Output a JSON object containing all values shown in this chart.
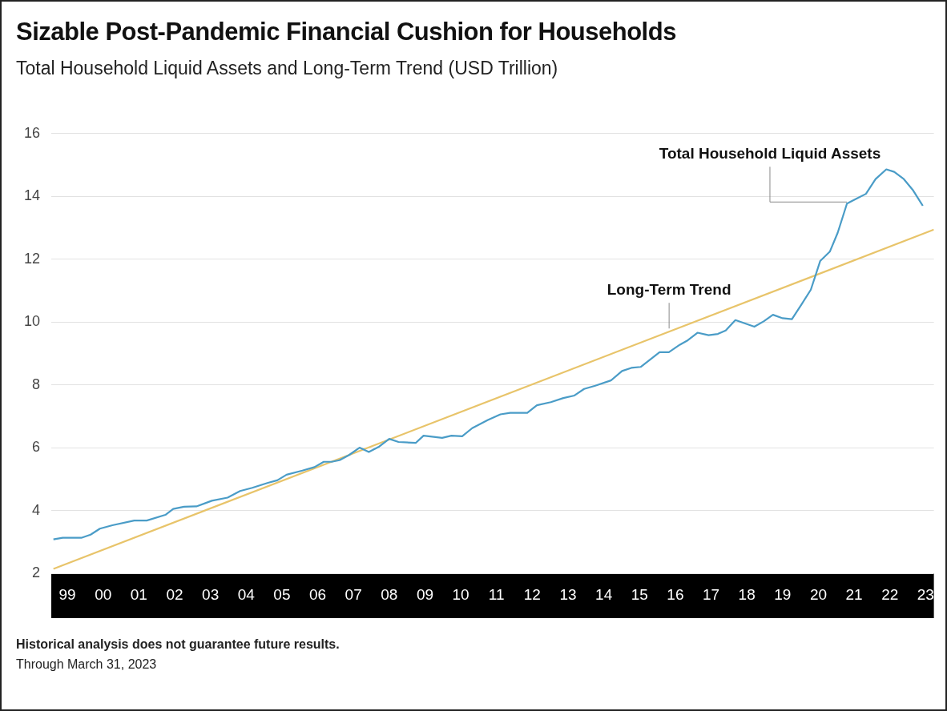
{
  "chart_data": {
    "type": "line",
    "title": "Sizable Post-Pandemic Financial Cushion for Households",
    "subtitle": "Total Household Liquid Assets and Long-Term Trend (USD Trillion)",
    "annotations": [
      "Historical analysis does not guarantee future results.",
      "Through March 31, 2023"
    ],
    "xlim": [
      1998.55,
      2023.23
    ],
    "xticks": [
      {
        "value": 1999,
        "label": "99"
      },
      {
        "value": 2000,
        "label": "00"
      },
      {
        "value": 2001,
        "label": "01"
      },
      {
        "value": 2002,
        "label": "02"
      },
      {
        "value": 2003,
        "label": "03"
      },
      {
        "value": 2004,
        "label": "04"
      },
      {
        "value": 2005,
        "label": "05"
      },
      {
        "value": 2006,
        "label": "06"
      },
      {
        "value": 2007,
        "label": "07"
      },
      {
        "value": 2008,
        "label": "08"
      },
      {
        "value": 2009,
        "label": "09"
      },
      {
        "value": 2010,
        "label": "10"
      },
      {
        "value": 2011,
        "label": "11"
      },
      {
        "value": 2012,
        "label": "12"
      },
      {
        "value": 2013,
        "label": "13"
      },
      {
        "value": 2014,
        "label": "14"
      },
      {
        "value": 2015,
        "label": "15"
      },
      {
        "value": 2016,
        "label": "16"
      },
      {
        "value": 2017,
        "label": "17"
      },
      {
        "value": 2018,
        "label": "18"
      },
      {
        "value": 2019,
        "label": "19"
      },
      {
        "value": 2020,
        "label": "20"
      },
      {
        "value": 2021,
        "label": "21"
      },
      {
        "value": 2022,
        "label": "22"
      },
      {
        "value": 2023,
        "label": "23"
      }
    ],
    "ylim": [
      2,
      16
    ],
    "yticks": [
      2,
      4,
      6,
      8,
      10,
      12,
      14,
      16
    ],
    "grid": "y",
    "legend": false,
    "marker": "none",
    "series": [
      {
        "name": "Total Household Liquid Assets",
        "color": "#4a9cc7",
        "x": [
          1998.61,
          1998.87,
          1999.39,
          1999.65,
          1999.91,
          2000.26,
          2000.87,
          2001.22,
          2001.74,
          2001.96,
          2002.26,
          2002.61,
          2003.04,
          2003.48,
          2003.83,
          2004.17,
          2004.61,
          2004.87,
          2005.13,
          2005.57,
          2005.91,
          2006.17,
          2006.39,
          2006.61,
          2006.87,
          2007.17,
          2007.43,
          2007.7,
          2008.0,
          2008.26,
          2008.74,
          2008.96,
          2009.48,
          2009.74,
          2010.04,
          2010.32,
          2010.76,
          2011.11,
          2011.38,
          2011.86,
          2012.13,
          2012.52,
          2012.87,
          2013.18,
          2013.45,
          2013.76,
          2014.2,
          2014.51,
          2014.77,
          2015.03,
          2015.56,
          2015.82,
          2016.13,
          2016.35,
          2016.62,
          2016.93,
          2017.19,
          2017.41,
          2017.68,
          2018.21,
          2018.47,
          2018.73,
          2019.0,
          2019.26,
          2019.53,
          2019.79,
          2020.05,
          2020.32,
          2020.54,
          2020.8,
          2021.07,
          2021.33,
          2021.6,
          2021.9,
          2022.12,
          2022.39,
          2022.65,
          2022.92
        ],
        "values": [
          3.08,
          3.13,
          3.13,
          3.23,
          3.42,
          3.53,
          3.68,
          3.68,
          3.86,
          4.05,
          4.12,
          4.13,
          4.31,
          4.41,
          4.62,
          4.72,
          4.88,
          4.96,
          5.14,
          5.27,
          5.38,
          5.55,
          5.55,
          5.6,
          5.76,
          6.0,
          5.86,
          6.02,
          6.28,
          6.18,
          6.15,
          6.38,
          6.31,
          6.38,
          6.36,
          6.62,
          6.88,
          7.06,
          7.11,
          7.11,
          7.35,
          7.45,
          7.58,
          7.66,
          7.87,
          7.97,
          8.14,
          8.44,
          8.54,
          8.57,
          9.04,
          9.04,
          9.28,
          9.42,
          9.66,
          9.58,
          9.62,
          9.73,
          10.06,
          9.85,
          10.02,
          10.23,
          10.12,
          10.09,
          10.56,
          11.03,
          11.94,
          12.24,
          12.84,
          13.77,
          13.93,
          14.08,
          14.55,
          14.86,
          14.78,
          14.55,
          14.19,
          13.7
        ]
      },
      {
        "name": "Long-Term Trend",
        "color": "#e8c46a",
        "x": [
          1998.61,
          2023.23
        ],
        "values": [
          2.14,
          12.94
        ]
      }
    ]
  }
}
